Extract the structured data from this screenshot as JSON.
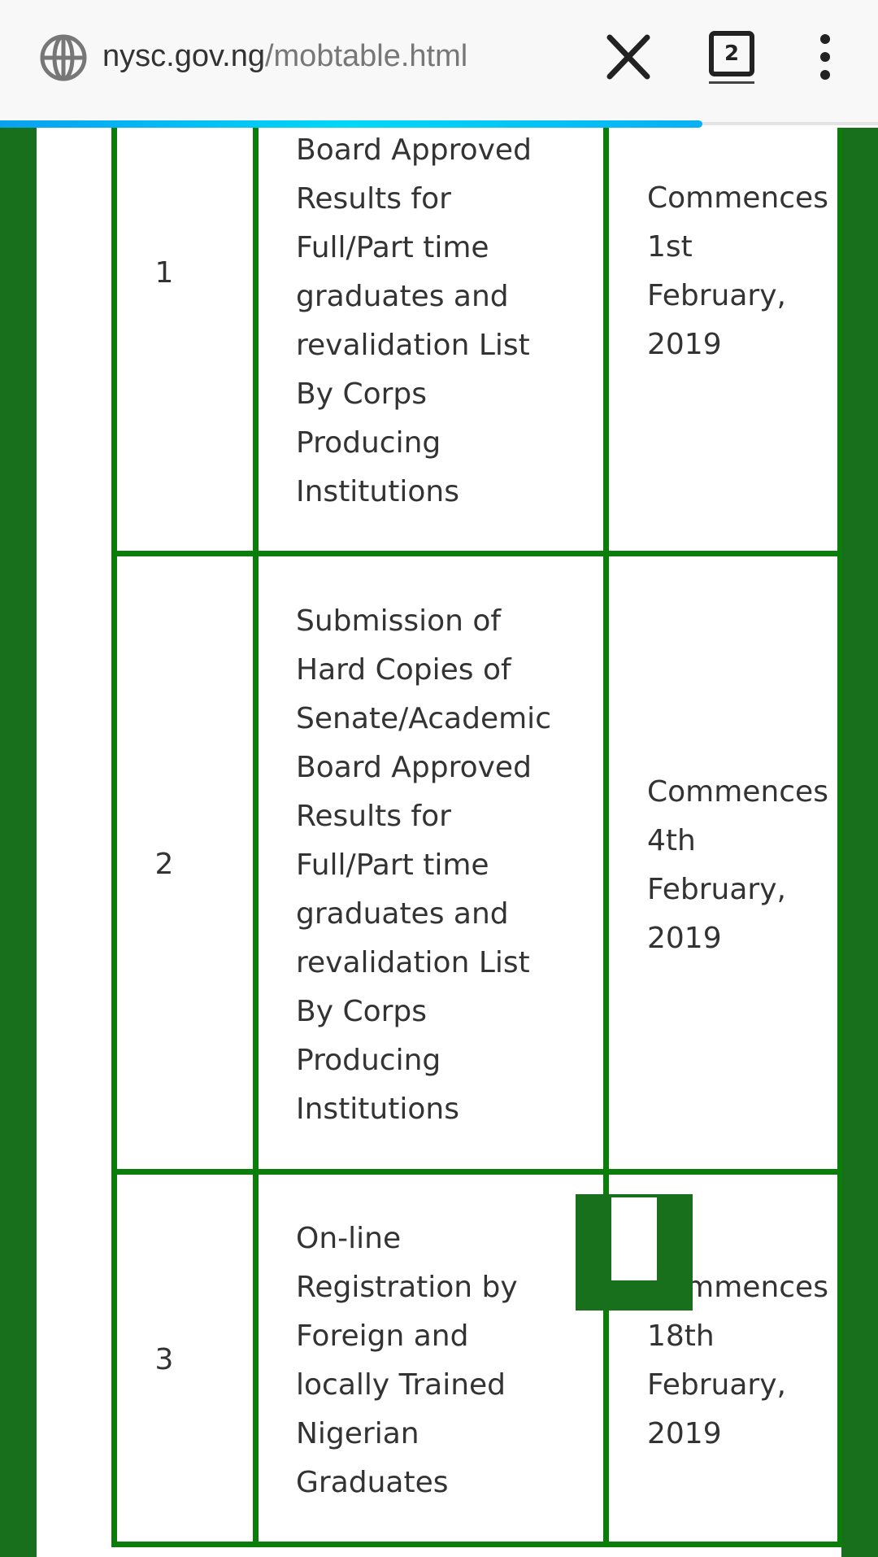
{
  "browser": {
    "url_domain": "nysc.gov.ng",
    "url_path": "/mobtable.html",
    "tab_count": "2",
    "load_progress": 0.8,
    "progress_color": "#00d8f8"
  },
  "colors": {
    "table_border": "#0a7d0a",
    "page_side": "#186f1c"
  },
  "rows": [
    {
      "num": "1",
      "activity": "Board Approved\nResults for\nFull/Part time\ngraduates and\nrevalidation List\nBy Corps\nProducing\nInstitutions",
      "date": "Commences\n1st\nFebruary,\n2019"
    },
    {
      "num": "2",
      "activity": "Submission of\nHard Copies of\nSenate/Academic\nBoard Approved\nResults for\nFull/Part time\ngraduates and\nrevalidation List\nBy Corps\nProducing\nInstitutions",
      "date": "Commences\n4th\nFebruary,\n2019"
    },
    {
      "num": "3",
      "activity": "On-line\nRegistration by\nForeign and\nlocally Trained\nNigerian\nGraduates",
      "date": "Commences\n18th\nFebruary,\n2019"
    }
  ]
}
